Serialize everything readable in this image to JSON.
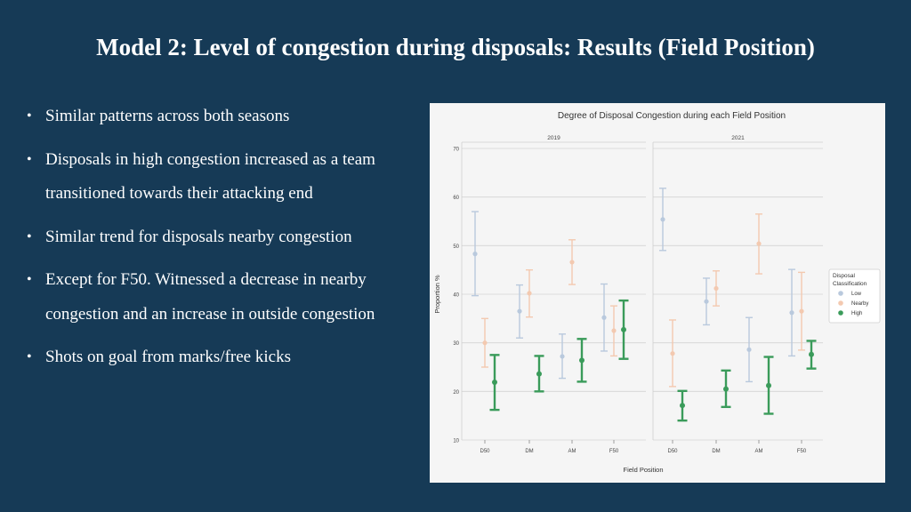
{
  "slide": {
    "title": "Model 2: Level of congestion during disposals: Results (Field Position)",
    "bullets": [
      "Similar patterns across both seasons",
      "Disposals in high congestion increased as a team transitioned towards their attacking end",
      "Similar trend for disposals nearby congestion",
      "Except for F50. Witnessed a decrease in nearby congestion and an increase in outside congestion",
      "Shots on goal from marks/free kicks"
    ]
  },
  "chart_data": {
    "type": "scatter",
    "title": "Degree of Disposal Congestion during each Field Position",
    "xlabel": "Field Position",
    "ylabel": "Proportion %",
    "categories": [
      "D50",
      "DM",
      "AM",
      "F50"
    ],
    "ylim": [
      10,
      70
    ],
    "yticks": [
      10,
      20,
      30,
      40,
      50,
      60,
      70
    ],
    "grid": true,
    "legend": {
      "title": "Disposal Classification",
      "position": "right",
      "entries": [
        "Low",
        "Nearby",
        "High"
      ]
    },
    "colors": {
      "Low": "#b9c9dd",
      "Nearby": "#f3c9b0",
      "High": "#3a9b5a"
    },
    "panels": [
      {
        "title": "2019",
        "series": [
          {
            "name": "Low",
            "values": [
              48.3,
              36.5,
              27.2,
              35.2
            ],
            "lower": [
              39.7,
              31.0,
              22.7,
              28.3
            ],
            "upper": [
              57.0,
              41.9,
              31.8,
              42.1
            ]
          },
          {
            "name": "Nearby",
            "values": [
              30.0,
              40.2,
              46.6,
              32.5
            ],
            "lower": [
              25.0,
              35.3,
              42.0,
              27.3
            ],
            "upper": [
              35.0,
              45.0,
              51.2,
              37.6
            ]
          },
          {
            "name": "High",
            "values": [
              21.9,
              23.6,
              26.4,
              32.7
            ],
            "lower": [
              16.2,
              20.0,
              22.0,
              26.7
            ],
            "upper": [
              27.5,
              27.3,
              30.8,
              38.7
            ]
          }
        ]
      },
      {
        "title": "2021",
        "series": [
          {
            "name": "Low",
            "values": [
              55.4,
              38.5,
              28.6,
              36.2
            ],
            "lower": [
              49.0,
              33.7,
              22.0,
              27.3
            ],
            "upper": [
              61.8,
              43.3,
              35.2,
              45.1
            ]
          },
          {
            "name": "Nearby",
            "values": [
              27.8,
              41.2,
              50.4,
              36.5
            ],
            "lower": [
              21.0,
              37.6,
              44.2,
              28.5
            ],
            "upper": [
              34.7,
              44.8,
              56.5,
              44.5
            ]
          },
          {
            "name": "High",
            "values": [
              17.1,
              20.5,
              21.2,
              27.6
            ],
            "lower": [
              14.0,
              16.8,
              15.4,
              24.7
            ],
            "upper": [
              20.1,
              24.3,
              27.1,
              30.4
            ]
          }
        ]
      }
    ]
  }
}
